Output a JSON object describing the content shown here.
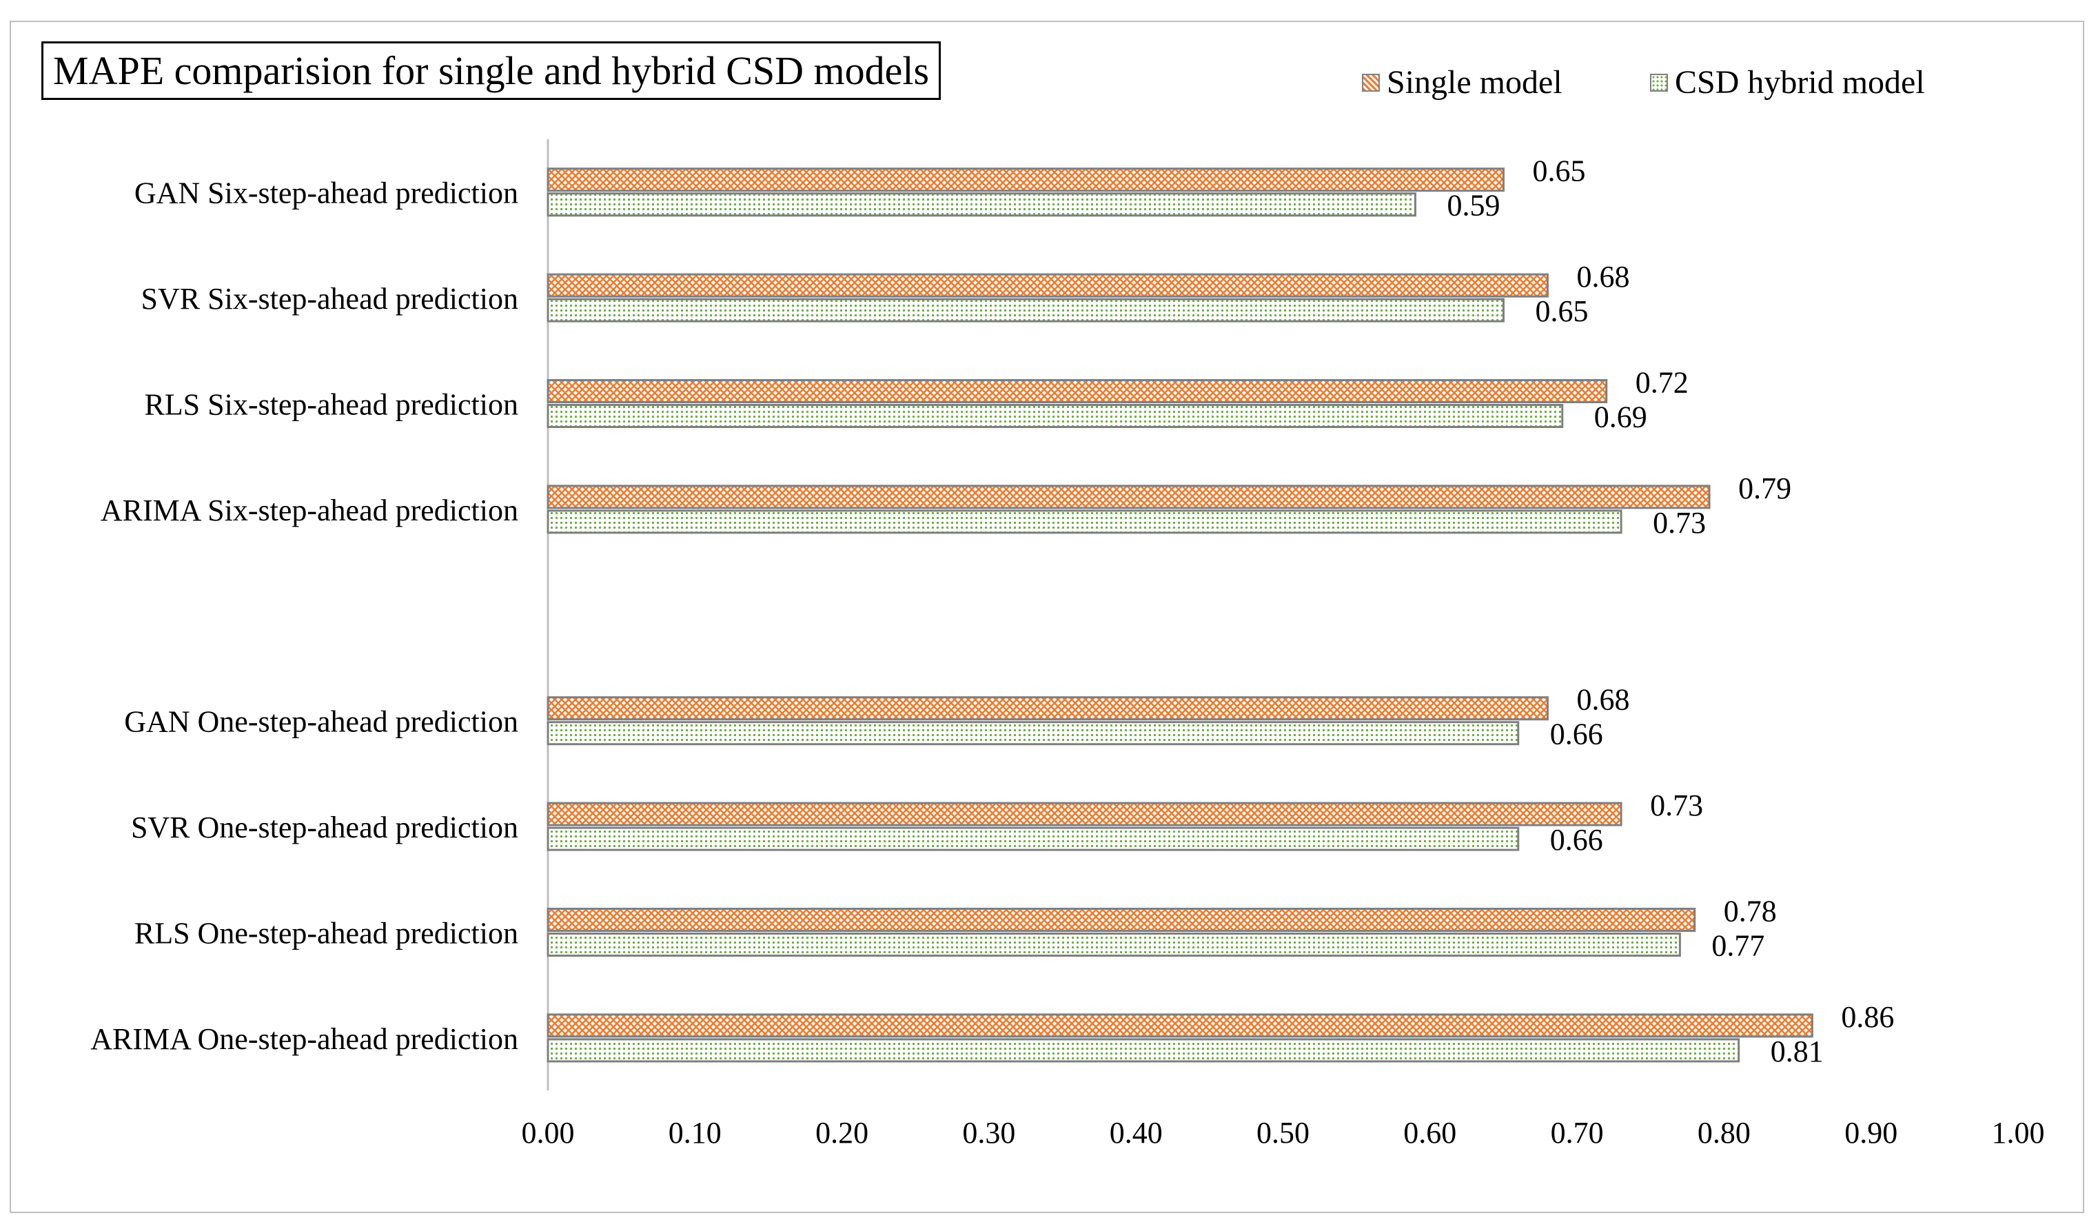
{
  "colors": {
    "single": "#ed7d31",
    "hybrid": "#70ad47",
    "bar_outline": "#7f7f7f",
    "axis": "#bfbfbf"
  },
  "chart_data": {
    "type": "bar",
    "orientation": "horizontal",
    "title": "MAPE comparision for single and hybrid CSD models",
    "xlabel": "",
    "ylabel": "",
    "xlim": [
      0,
      1
    ],
    "x_ticks": [
      "0.00",
      "0.10",
      "0.20",
      "0.30",
      "0.40",
      "0.50",
      "0.60",
      "0.70",
      "0.80",
      "0.90",
      "1.00"
    ],
    "grid": false,
    "legend_position": "top-right",
    "categories": [
      "GAN Six-step-ahead prediction",
      "SVR Six-step-ahead prediction",
      "RLS Six-step-ahead prediction",
      "ARIMA Six-step-ahead prediction",
      "",
      "GAN One-step-ahead prediction",
      "SVR One-step-ahead prediction",
      "RLS One-step-ahead prediction",
      "ARIMA One-step-ahead prediction"
    ],
    "series": [
      {
        "name": "Single model",
        "pattern": "crosshatch",
        "values": [
          0.65,
          0.68,
          0.72,
          0.79,
          null,
          0.68,
          0.73,
          0.78,
          0.86
        ],
        "labels": [
          "0.65",
          "0.68",
          "0.72",
          "0.79",
          "",
          "0.68",
          "0.73",
          "0.78",
          "0.86"
        ]
      },
      {
        "name": "CSD hybrid model",
        "pattern": "dotted",
        "values": [
          0.59,
          0.65,
          0.69,
          0.73,
          null,
          0.66,
          0.66,
          0.77,
          0.81
        ],
        "labels": [
          "0.59",
          "0.65",
          "0.69",
          "0.73",
          "",
          "0.66",
          "0.66",
          "0.77",
          "0.81"
        ]
      }
    ]
  }
}
